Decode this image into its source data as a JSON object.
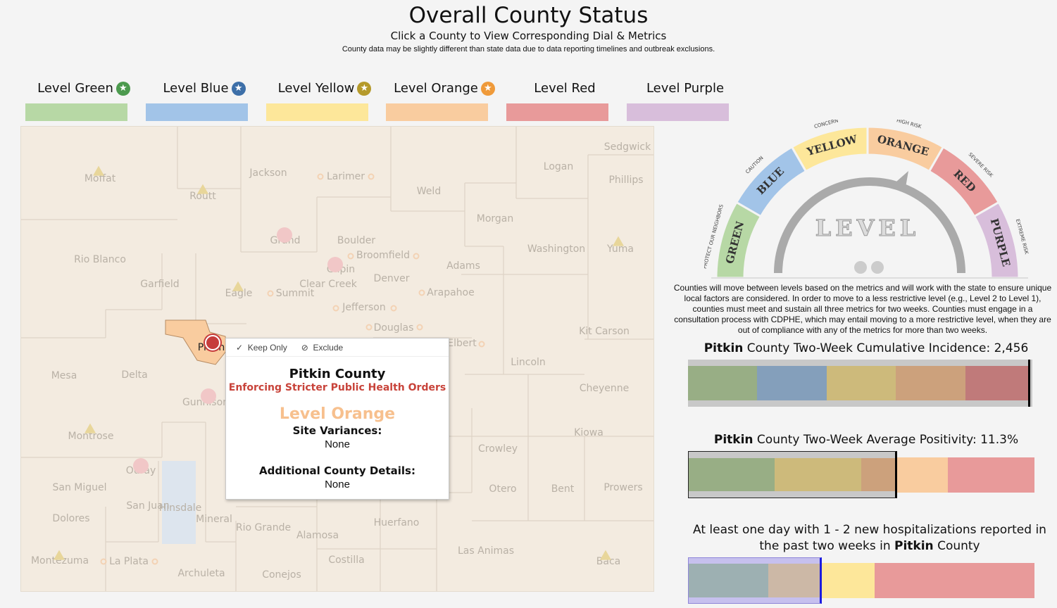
{
  "header": {
    "title": "Overall County Status",
    "subtitle": "Click a County to View Corresponding Dial & Metrics",
    "note": "County data may be slightly different than state data due to data reporting timelines and outbreak exclusions."
  },
  "levels": [
    {
      "label": "Level Green",
      "star": true,
      "star_color": "#4c9a4e",
      "color": "#b7d8a5"
    },
    {
      "label": "Level Blue",
      "star": true,
      "star_color": "#3d6fa8",
      "color": "#a2c4e8"
    },
    {
      "label": "Level Yellow",
      "star": true,
      "star_color": "#b59a2b",
      "color": "#fde79a"
    },
    {
      "label": "Level Orange",
      "star": true,
      "star_color": "#ef9a3a",
      "color": "#f9cc9f"
    },
    {
      "label": "Level Red",
      "star": false,
      "color": "#e89a9a"
    },
    {
      "label": "Level Purple",
      "star": false,
      "color": "#d8bedb"
    }
  ],
  "map": {
    "counties": [
      "Moffat",
      "Routt",
      "Jackson",
      "Larimer",
      "Logan",
      "Sedgwick",
      "Phillips",
      "Weld",
      "Morgan",
      "Rio Blanco",
      "Grand",
      "Boulder",
      "Broomfield",
      "Gilpin",
      "Adams",
      "Washington",
      "Yuma",
      "Garfield",
      "Eagle",
      "Summit",
      "Clear Creek",
      "Denver",
      "Arapahoe",
      "Jefferson",
      "Douglas",
      "Elbert",
      "Kit Carson",
      "Lincoln",
      "Mesa",
      "Delta",
      "Gunnison",
      "Cheyenne",
      "Montrose",
      "Kiowa",
      "Crowley",
      "Ouray",
      "San Miguel",
      "San Juan",
      "Hinsdale",
      "Mineral",
      "Rio Grande",
      "Alamosa",
      "Huerfano",
      "Otero",
      "Bent",
      "Prowers",
      "Dolores",
      "Montezuma",
      "La Plata",
      "Archuleta",
      "Conejos",
      "Costilla",
      "Las Animas",
      "Baca",
      "Pitkin"
    ]
  },
  "tooltip": {
    "keep_only": "Keep Only",
    "exclude": "Exclude",
    "county": "Pitkin County",
    "status": "Enforcing Stricter Public Health Orders",
    "level": "Level Orange",
    "variances_label": "Site Variances:",
    "variances_value": "None",
    "details_label": "Additional County Details:",
    "details_value": "None"
  },
  "dial": {
    "segments": [
      {
        "label": "GREEN",
        "sub": "PROTECT OUR NEIGHBORS",
        "color": "#b7d8a5"
      },
      {
        "label": "BLUE",
        "sub": "CAUTION",
        "color": "#a2c4e8"
      },
      {
        "label": "YELLOW",
        "sub": "CONCERN",
        "color": "#fde79a"
      },
      {
        "label": "ORANGE",
        "sub": "HIGH RISK",
        "color": "#f9cc9f"
      },
      {
        "label": "RED",
        "sub": "SEVERE RISK",
        "color": "#e89a9a"
      },
      {
        "label": "PURPLE",
        "sub": "EXTREME RISK",
        "color": "#d8bedb"
      }
    ],
    "center_word": "LEVEL",
    "needle_level": "ORANGE",
    "description": "Counties will move between levels based on the metrics and will work with the state to ensure unique local factors are considered. In order to move to a less restrictive level (e.g., Level 2 to Level 1), counties must meet and sustain all three metrics for two weeks. Counties must engage in a consultation process with CDPHE, which may entail moving to a more restrictive level, when they are out of compliance with any of the metrics for more than two weeks."
  },
  "metrics": {
    "incidence": {
      "county": "Pitkin",
      "rest": " County Two-Week Cumulative Incidence: 2,456",
      "value": 2456
    },
    "positivity": {
      "county": "Pitkin",
      "rest": " County Two-Week Average Positivity: 11.3%",
      "value_pct": 11.3
    },
    "hospital": {
      "line1": "At least one day with 1 - 2 new hospitalizations reported in",
      "line2_pre": "the past two weeks in ",
      "county": "Pitkin",
      "line2_post": " County"
    }
  }
}
